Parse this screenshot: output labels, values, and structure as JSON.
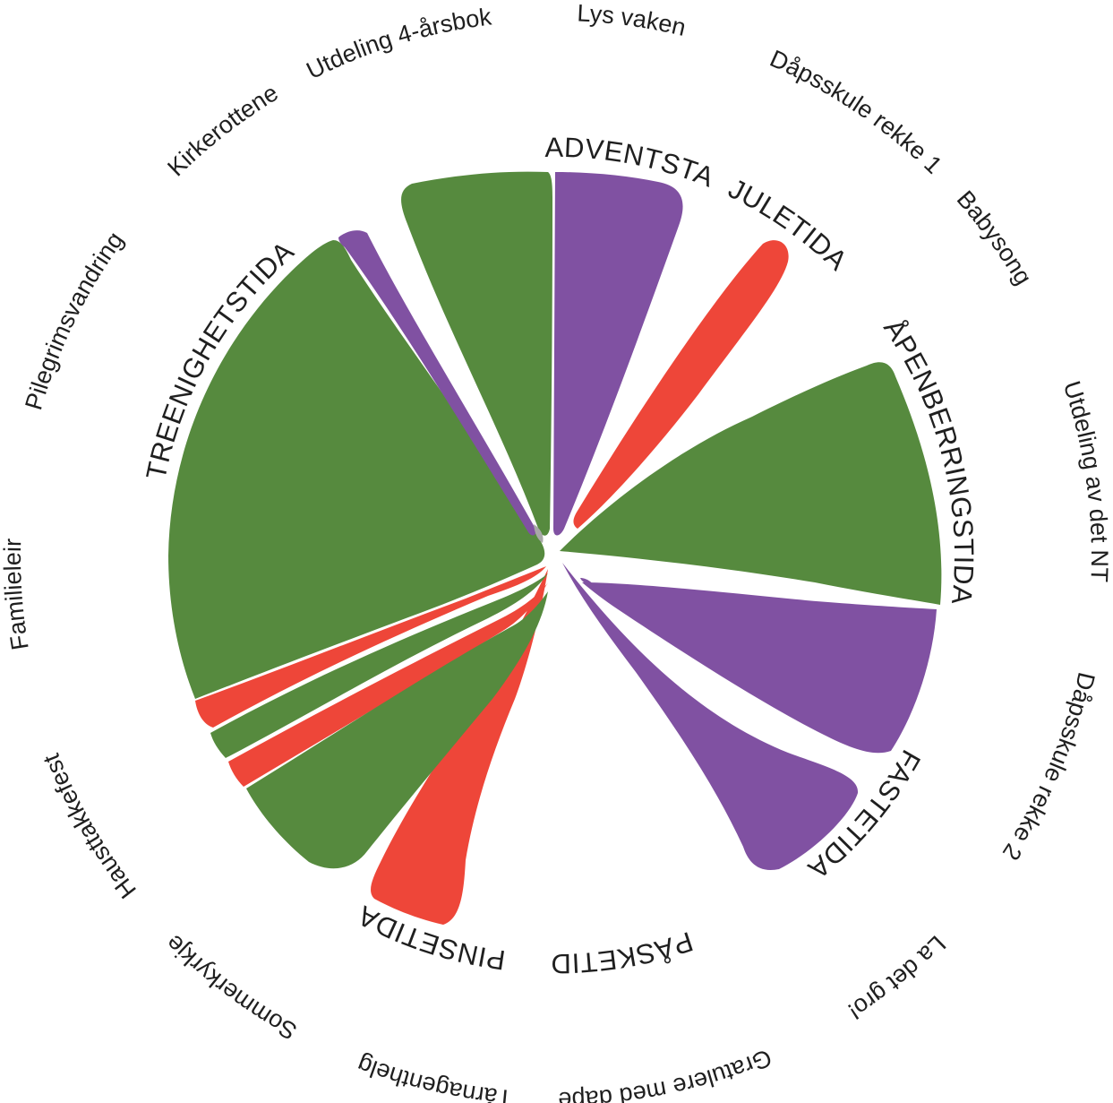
{
  "colors": {
    "green": "#568a3e",
    "purple": "#8051a2",
    "red": "#ee4639",
    "hub": "#a8a8a8",
    "text": "#1f1f1f"
  },
  "seasons": [
    {
      "key": "adventsta",
      "label": "ADVENTSTA",
      "color": "purple"
    },
    {
      "key": "juletida",
      "label": "JULETIDA",
      "color": "red"
    },
    {
      "key": "apenberringstida",
      "label": "ÅPENBERRINGSTIDA",
      "color": "green"
    },
    {
      "key": "fastetida",
      "label": "FASTETIDA",
      "color": "purple"
    },
    {
      "key": "paasketida",
      "label": "PÅSKETIDA",
      "color": "purple"
    },
    {
      "key": "pinsetida",
      "label": "PINSETIDA",
      "color": "red"
    },
    {
      "key": "treenighetstida",
      "label": "TREENIGHETSTIDA",
      "color": "green"
    }
  ],
  "activities": [
    {
      "key": "lys_vaken",
      "label": "Lys vaken"
    },
    {
      "key": "dapsskule_rekke_1",
      "label": "Dåpsskule rekke 1"
    },
    {
      "key": "babysong",
      "label": "Babysong"
    },
    {
      "key": "utdeling_nt",
      "label": "Utdeling av det NT"
    },
    {
      "key": "dapsskule_rekke_2",
      "label": "Dåpsskule rekke 2"
    },
    {
      "key": "la_det_gro",
      "label": "La det gro!"
    },
    {
      "key": "gratulere_med_dapen",
      "label": "Gratulere med dåpen"
    },
    {
      "key": "tarnagenthelg",
      "label": "Tårnagenthelg"
    },
    {
      "key": "sommerkyrkje",
      "label": "Sommerkyrkje"
    },
    {
      "key": "haustakkefest",
      "label": "Hausttakkefest"
    },
    {
      "key": "familieleir",
      "label": "Familieleir"
    },
    {
      "key": "pilegrimsvandring",
      "label": "Pilegrimsvandring"
    },
    {
      "key": "kirkerottene",
      "label": "Kirkerottene"
    },
    {
      "key": "utdeling_4_arsbok",
      "label": "Utdeling 4-årsbok"
    }
  ]
}
